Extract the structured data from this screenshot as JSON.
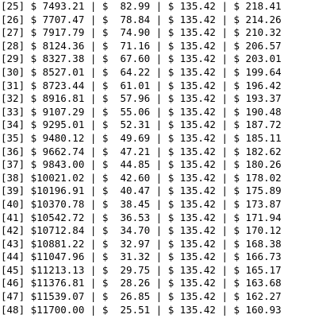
{
  "rows": [
    "[25] $ 7493.21 | $  82.99 | $ 135.42 | $ 218.41",
    "[26] $ 7707.47 | $  78.84 | $ 135.42 | $ 214.26",
    "[27] $ 7917.79 | $  74.90 | $ 135.42 | $ 210.32",
    "[28] $ 8124.36 | $  71.16 | $ 135.42 | $ 206.57",
    "[29] $ 8327.38 | $  67.60 | $ 135.42 | $ 203.01",
    "[30] $ 8527.01 | $  64.22 | $ 135.42 | $ 199.64",
    "[31] $ 8723.44 | $  61.01 | $ 135.42 | $ 196.42",
    "[32] $ 8916.81 | $  57.96 | $ 135.42 | $ 193.37",
    "[33] $ 9107.29 | $  55.06 | $ 135.42 | $ 190.48",
    "[34] $ 9295.01 | $  52.31 | $ 135.42 | $ 187.72",
    "[35] $ 9480.12 | $  49.69 | $ 135.42 | $ 185.11",
    "[36] $ 9662.74 | $  47.21 | $ 135.42 | $ 182.62",
    "[37] $ 9843.00 | $  44.85 | $ 135.42 | $ 180.26",
    "[38] $10021.02 | $  42.60 | $ 135.42 | $ 178.02",
    "[39] $10196.91 | $  40.47 | $ 135.42 | $ 175.89",
    "[40] $10370.78 | $  38.45 | $ 135.42 | $ 173.87",
    "[41] $10542.72 | $  36.53 | $ 135.42 | $ 171.94",
    "[42] $10712.84 | $  34.70 | $ 135.42 | $ 170.12",
    "[43] $10881.22 | $  32.97 | $ 135.42 | $ 168.38",
    "[44] $11047.96 | $  31.32 | $ 135.42 | $ 166.73",
    "[45] $11213.13 | $  29.75 | $ 135.42 | $ 165.17",
    "[46] $11376.81 | $  28.26 | $ 135.42 | $ 163.68",
    "[47] $11539.07 | $  26.85 | $ 135.42 | $ 162.27",
    "[48] $11700.00 | $  25.51 | $ 135.42 | $ 160.93"
  ]
}
